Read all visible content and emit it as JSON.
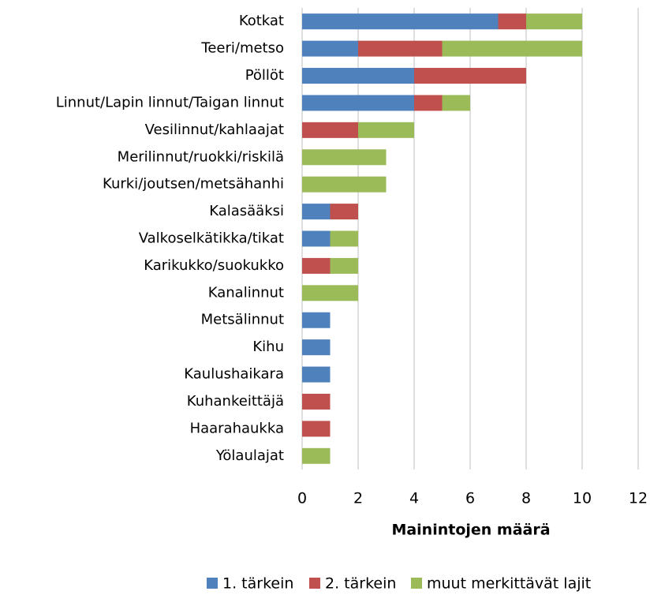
{
  "chart_data": {
    "type": "bar",
    "orientation": "horizontal",
    "stacked": true,
    "xlabel": "Mainintojen määrä",
    "categories": [
      "Kotkat",
      "Teeri/metso",
      "Pöllöt",
      "Linnut/Lapin linnut/Taigan linnut",
      "Vesilinnut/kahlaajat",
      "Merilinnut/ruokki/riskilä",
      "Kurki/joutsen/metsähanhi",
      "Kalasääksi",
      "Valkoselkätikka/tikat",
      "Karikukko/suokukko",
      "Kanalinnut",
      "Metsälinnut",
      "Kihu",
      "Kaulushaikara",
      "Kuhankeittäjä",
      "Haarahaukka",
      "Yölaulajat"
    ],
    "series": [
      {
        "name": "1. tärkein",
        "color": "#4f81bd",
        "values": [
          7,
          2,
          4,
          4,
          0,
          0,
          0,
          1,
          1,
          0,
          0,
          1,
          1,
          1,
          0,
          0,
          0
        ]
      },
      {
        "name": "2. tärkein",
        "color": "#c0504d",
        "values": [
          1,
          3,
          4,
          1,
          2,
          0,
          0,
          1,
          0,
          1,
          0,
          0,
          0,
          0,
          1,
          1,
          0
        ]
      },
      {
        "name": "muut merkittävät lajit",
        "color": "#9bbb59",
        "values": [
          2,
          5,
          0,
          1,
          2,
          3,
          3,
          0,
          1,
          1,
          2,
          0,
          0,
          0,
          0,
          0,
          1
        ]
      }
    ],
    "xlim": [
      0,
      12
    ],
    "xticks": [
      0,
      2,
      4,
      6,
      8,
      10,
      12
    ],
    "grid": true,
    "legend": "bottom"
  }
}
